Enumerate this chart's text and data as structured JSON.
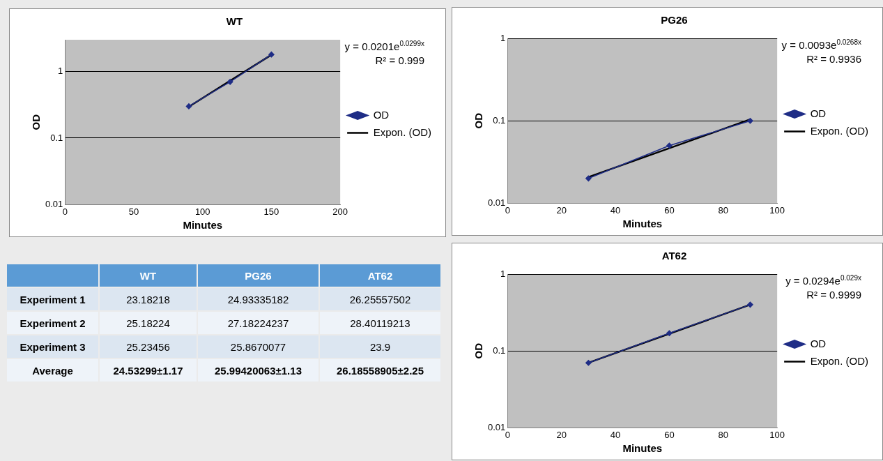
{
  "chart_data": [
    {
      "type": "line",
      "title": "WT",
      "xlabel": "Minutes",
      "ylabel": "OD",
      "log": "y",
      "grid": "y",
      "legend": "right",
      "xlim": [
        0,
        200
      ],
      "xticks": [
        0,
        50,
        100,
        150,
        200
      ],
      "ylim": [
        0.01,
        3
      ],
      "yticks": [
        0.01,
        0.1,
        1
      ],
      "annotations": [
        "y = 0.0201e$^{0.0299x}$",
        "R² = 0.999"
      ],
      "series": [
        {
          "name": "OD",
          "color": "#1f2d86",
          "marker": "diamond",
          "x": [
            90,
            120,
            150
          ],
          "values": [
            0.3,
            0.7,
            1.8
          ]
        },
        {
          "name": "Expon. (OD)",
          "color": "#000000",
          "marker": "none",
          "x": [
            90,
            150
          ],
          "values": [
            0.296,
            1.78
          ]
        }
      ]
    },
    {
      "type": "line",
      "title": "PG26",
      "xlabel": "Minutes",
      "ylabel": "OD",
      "log": "y",
      "grid": "y",
      "legend": "right",
      "xlim": [
        0,
        100
      ],
      "xticks": [
        0,
        20,
        40,
        60,
        80,
        100
      ],
      "ylim": [
        0.01,
        1
      ],
      "yticks": [
        0.01,
        0.1,
        1
      ],
      "annotations": [
        "y = 0.0093e$^{0.0268x}$",
        "R² = 0.9936"
      ],
      "series": [
        {
          "name": "OD",
          "color": "#1f2d86",
          "marker": "diamond",
          "x": [
            30,
            60,
            90
          ],
          "values": [
            0.02,
            0.05,
            0.1
          ]
        },
        {
          "name": "Expon. (OD)",
          "color": "#000000",
          "marker": "none",
          "x": [
            30,
            90
          ],
          "values": [
            0.0208,
            0.104
          ]
        }
      ]
    },
    {
      "type": "line",
      "title": "AT62",
      "xlabel": "Minutes",
      "ylabel": "OD",
      "log": "y",
      "grid": "y",
      "legend": "right",
      "xlim": [
        0,
        100
      ],
      "xticks": [
        0,
        20,
        40,
        60,
        80,
        100
      ],
      "ylim": [
        0.01,
        1
      ],
      "yticks": [
        0.01,
        0.1,
        1
      ],
      "annotations": [
        "y = 0.0294e$^{0.029x}$",
        "R² = 0.9999"
      ],
      "series": [
        {
          "name": "OD",
          "color": "#1f2d86",
          "marker": "diamond",
          "x": [
            30,
            60,
            90
          ],
          "values": [
            0.07,
            0.17,
            0.4
          ]
        },
        {
          "name": "Expon. (OD)",
          "color": "#000000",
          "marker": "none",
          "x": [
            30,
            90
          ],
          "values": [
            0.0702,
            0.4
          ]
        }
      ]
    },
    {
      "type": "other",
      "categories": [
        null,
        "WT",
        "PG26",
        "AT62"
      ],
      "y_categories": [
        "Experiment 1",
        "Experiment 2",
        "Experiment 3",
        "Average"
      ],
      "cell_labels": [
        [
          "23.18218",
          "24.93335182",
          "26.25557502"
        ],
        [
          "25.18224",
          "27.18224237",
          "28.40119213"
        ],
        [
          "25.23456",
          "25.8670077",
          "23.9"
        ],
        [
          "24.53299±1.17",
          "25.99420063±1.13",
          "26.18558905±2.25"
        ]
      ]
    }
  ]
}
